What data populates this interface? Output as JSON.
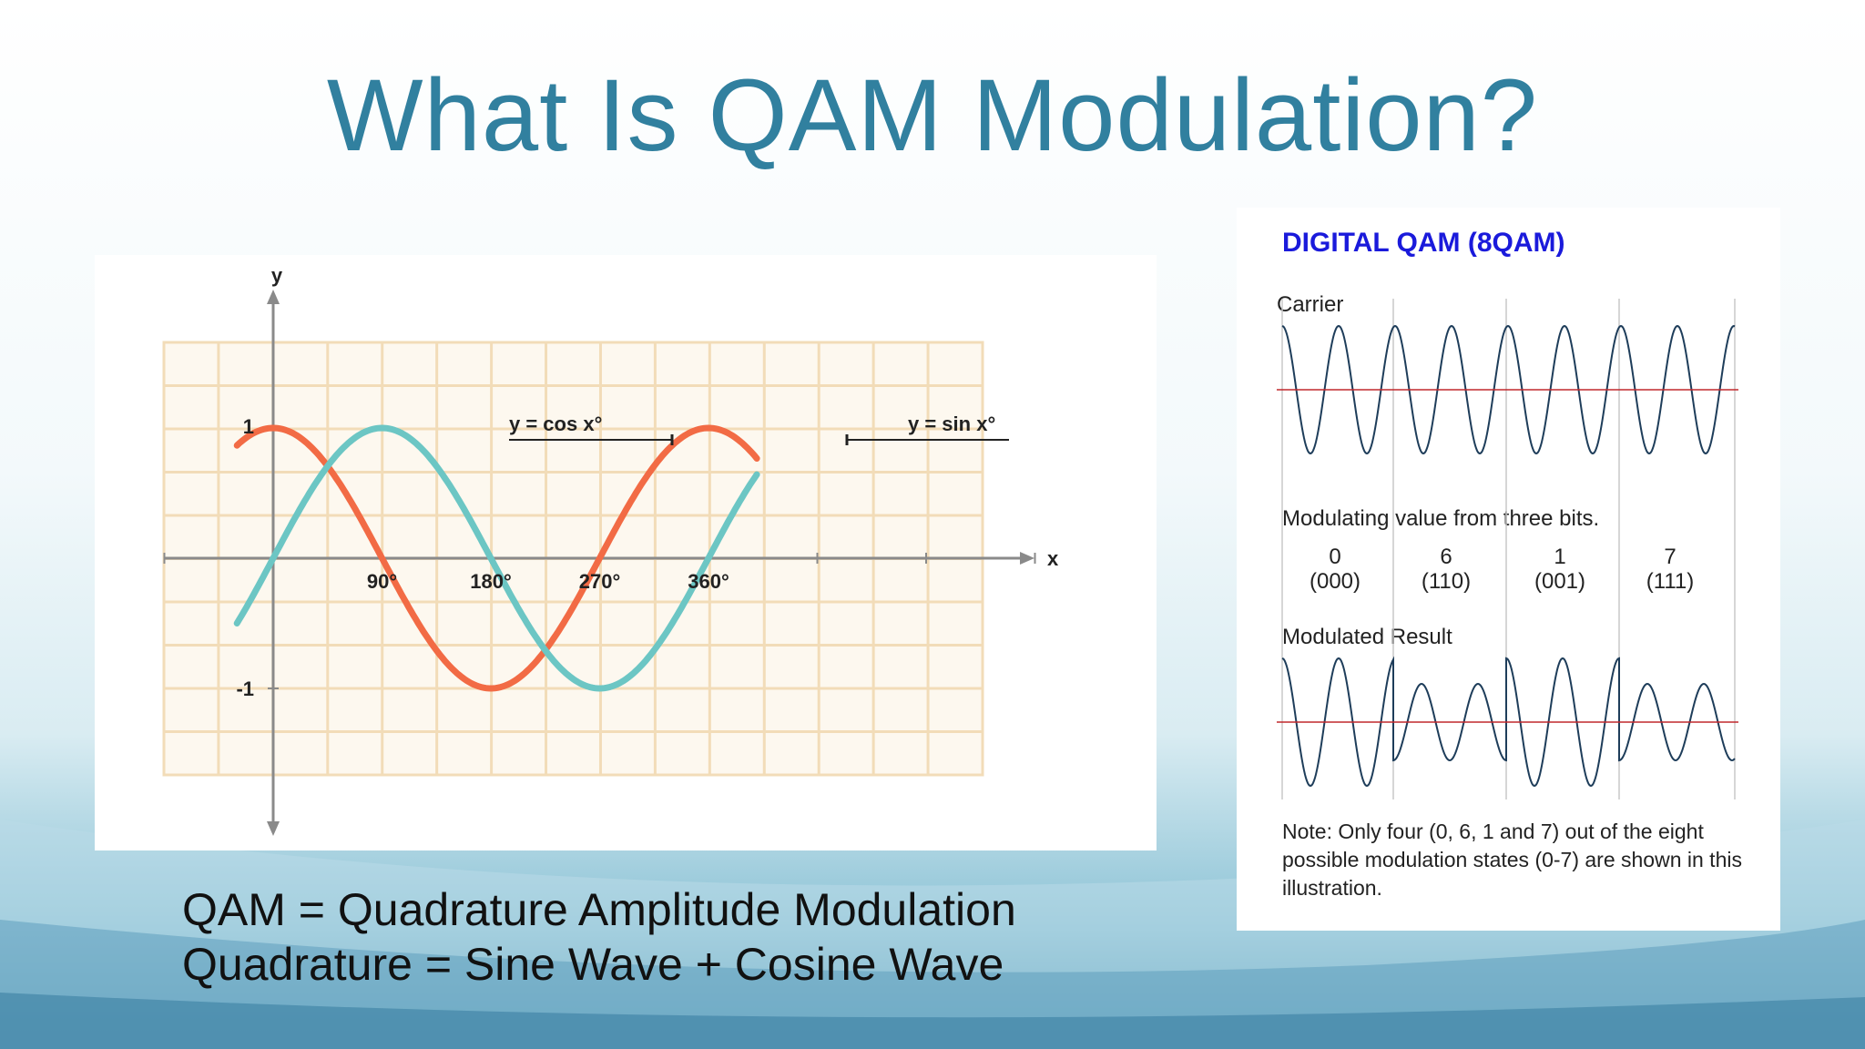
{
  "slide": {
    "title": "What Is QAM Modulation?",
    "captions": [
      "QAM = Quadrature Amplitude Modulation",
      "Quadrature = Sine Wave + Cosine Wave"
    ]
  },
  "graph": {
    "y_axis_label": "y",
    "x_axis_label": "x",
    "y_tick_labels": [
      "1",
      "-1"
    ],
    "x_tick_labels": [
      "90°",
      "180°",
      "270°",
      "360°"
    ],
    "cos_label": "y = cos x°",
    "sin_label": "y = sin x°",
    "colors": {
      "cos": "#f26b45",
      "sin": "#6cc6c4",
      "grid": "#f2dcb8",
      "axis": "#8a8a8a"
    }
  },
  "qam_panel": {
    "title": "DIGITAL QAM (8QAM)",
    "carrier_label": "Carrier",
    "modulating_label": "Modulating value from three bits.",
    "bits": [
      {
        "value": "0",
        "code": "(000)"
      },
      {
        "value": "6",
        "code": "(110)"
      },
      {
        "value": "1",
        "code": "(001)"
      },
      {
        "value": "7",
        "code": "(111)"
      }
    ],
    "result_label": "Modulated Result",
    "note": "Note: Only four (0, 6, 1 and 7) out of the eight possible modulation states (0-7) are shown in this illustration.",
    "colors": {
      "wave": "#1e3d5a",
      "baseline": "#c0282d",
      "title": "#1a1adb"
    }
  }
}
